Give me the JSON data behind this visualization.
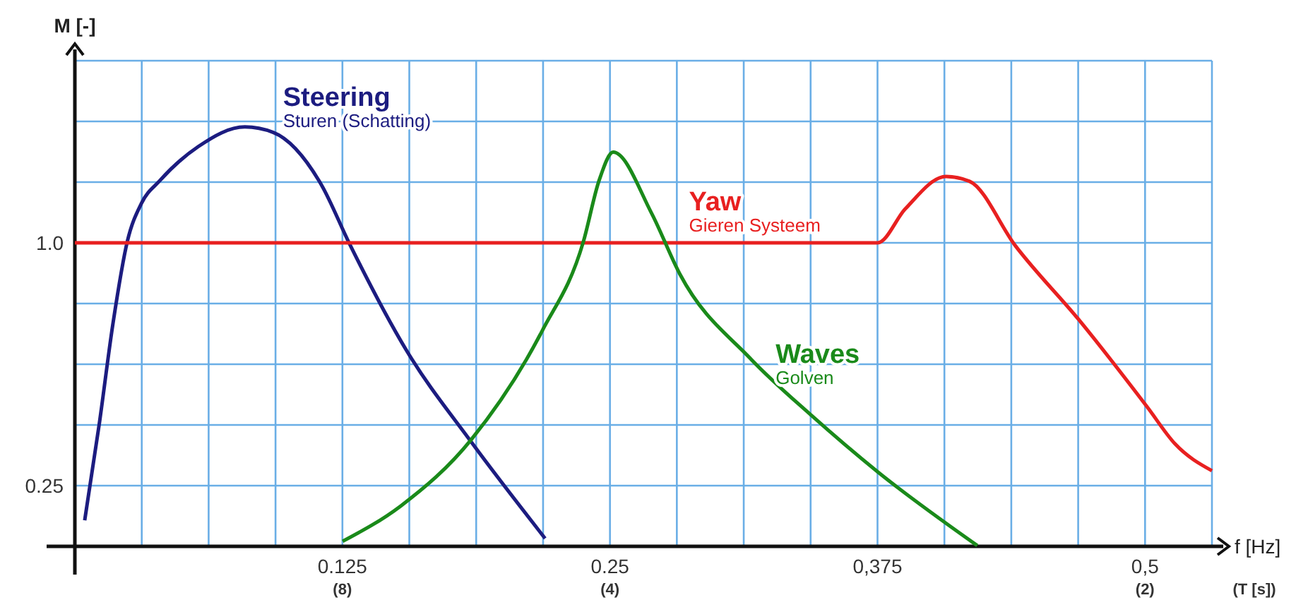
{
  "chart_data": {
    "type": "line",
    "xlabel": "f [Hz]",
    "ylabel": "M [-]",
    "xlim": [
      0,
      0.53125
    ],
    "ylim": [
      0.0625,
      1.5625
    ],
    "xticks": [
      {
        "value": 0.03125,
        "label": null
      },
      {
        "value": 0.0625,
        "label": null
      },
      {
        "value": 0.09375,
        "label": null
      },
      {
        "value": 0.125,
        "label": "0.125"
      },
      {
        "value": 0.15625,
        "label": null
      },
      {
        "value": 0.1875,
        "label": null
      },
      {
        "value": 0.21875,
        "label": null
      },
      {
        "value": 0.25,
        "label": "0.25"
      },
      {
        "value": 0.28125,
        "label": null
      },
      {
        "value": 0.3125,
        "label": null
      },
      {
        "value": 0.34375,
        "label": null
      },
      {
        "value": 0.375,
        "label": "0,375"
      },
      {
        "value": 0.40625,
        "label": null
      },
      {
        "value": 0.4375,
        "label": null
      },
      {
        "value": 0.46875,
        "label": null
      },
      {
        "value": 0.5,
        "label": "0,5"
      },
      {
        "value": 0.53125,
        "label": null
      }
    ],
    "yticks": [
      {
        "value": 0.25,
        "label": "0.25"
      },
      {
        "value": 0.4375,
        "label": null
      },
      {
        "value": 0.625,
        "label": null
      },
      {
        "value": 0.8125,
        "label": null
      },
      {
        "value": 1.0,
        "label": "1.0"
      },
      {
        "value": 1.1875,
        "label": null
      },
      {
        "value": 1.375,
        "label": null
      },
      {
        "value": 1.5625,
        "label": null
      }
    ],
    "grid": true,
    "marker": "none",
    "line_style": "solid",
    "series": [
      {
        "name": "Steering",
        "color": "#1c1c80",
        "x": [
          0.0046,
          0.0113,
          0.0179,
          0.0245,
          0.0311,
          0.0397,
          0.0576,
          0.0794,
          0.0927,
          0.1152,
          0.1284,
          0.1549,
          0.1853,
          0.2197
        ],
        "values": [
          0.143,
          0.436,
          0.755,
          1.004,
          1.122,
          1.192,
          1.297,
          1.358,
          1.341,
          1.179,
          0.996,
          0.668,
          0.384,
          0.087
        ]
      },
      {
        "name": "Yaw",
        "color": "#e82020",
        "x": [
          0,
          0.375,
          0.388,
          0.407,
          0.418,
          0.4394,
          0.47,
          0.501,
          0.514,
          0.53125
        ],
        "values": [
          1.0,
          1.0,
          1.105,
          1.205,
          1.19,
          0.991,
          0.755,
          0.493,
          0.379,
          0.296
        ]
      },
      {
        "name": "Waves",
        "color": "#1a8a1a",
        "x": [
          0.1251,
          0.1522,
          0.1853,
          0.2184,
          0.2376,
          0.2449,
          0.2515,
          0.2694,
          0.2826,
          0.3157,
          0.3441,
          0.3752,
          0.4216
        ],
        "values": [
          0.078,
          0.187,
          0.393,
          0.729,
          1.004,
          1.192,
          1.28,
          1.092,
          0.904,
          0.642,
          0.467,
          0.292,
          0.065
        ]
      }
    ],
    "annotations": [
      "Sturen (Schatting)",
      "Gieren Systeem",
      "Golven",
      "(8)",
      "(4)",
      "(2)",
      "(T [s])"
    ]
  }
}
